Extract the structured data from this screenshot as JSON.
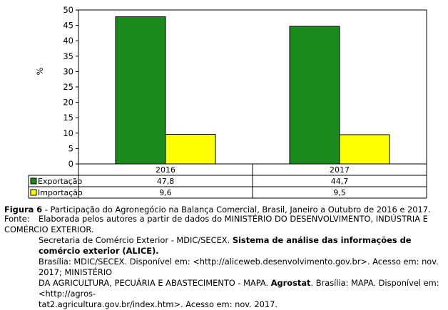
{
  "chart_data": {
    "type": "bar",
    "categories": [
      "2016",
      "2017"
    ],
    "series": [
      {
        "name": "Exportação",
        "values": [
          47.8,
          44.7
        ],
        "labels": [
          "47,8",
          "44,7"
        ],
        "color": "#1a8a1a"
      },
      {
        "name": "Importação",
        "values": [
          9.6,
          9.5
        ],
        "labels": [
          "9,6",
          "9,5"
        ],
        "color": "#ffff00"
      }
    ],
    "ylabel": "%",
    "ylim": [
      0,
      50
    ],
    "yticks": [
      0,
      5,
      10,
      15,
      20,
      25,
      30,
      35,
      40,
      45,
      50
    ],
    "grid": false,
    "legend": "data table below plot"
  },
  "caption": {
    "figure_label": "Figura 6",
    "figure_text": " - Participação do Agronegócio na Balança Comercial, Brasil, Janeiro a Outubro de 2016 e 2017."
  },
  "source": {
    "label": "Fonte:",
    "line1": "Elaborada pelos autores a partir de dados do MINISTÉRIO DO DESENVOLVIMENTO, INDÚSTRIA E COMÉRCIO EXTERIOR.",
    "line2a": "Secretaria de Comércio Exterior - MDIC/SECEX. ",
    "line2b": "Sistema de análise das informações de comércio exterior (ALICE).",
    "line3": "Brasília: MDIC/SECEX. Disponível em: <http://aliceweb.desenvolvimento.gov.br>. Acesso em: nov. 2017; MINISTÉRIO",
    "line4a": "DA AGRICULTURA, PECUÁRIA E ABASTECIMENTO - MAPA. ",
    "line4b": "Agrostat",
    "line4c": ". Brasília: MAPA. Disponível em: <http://agros-",
    "line5": "tat2.agricultura.gov.br/index.htm>. Acesso em: nov. 2017."
  }
}
